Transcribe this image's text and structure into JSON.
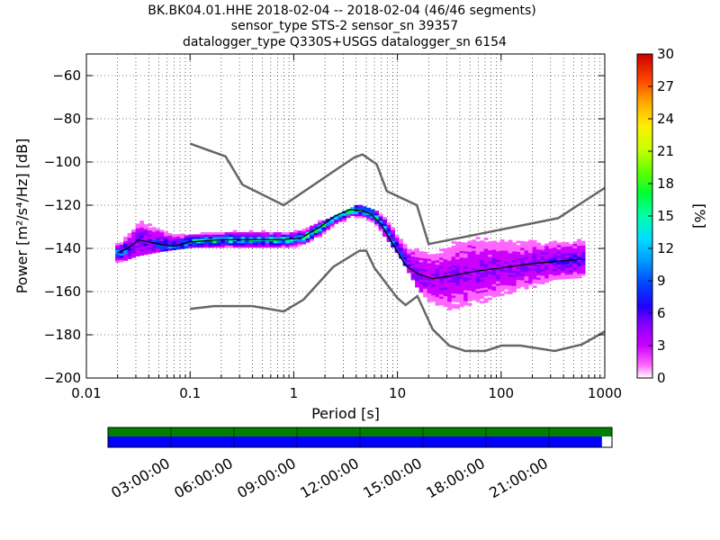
{
  "header": {
    "line1": "BK.BK04.01.HHE   2018-02-04 -- 2018-02-04  (46/46 segments)",
    "line2": "sensor_type STS-2 sensor_sn 39357",
    "line3": "datalogger_type Q330S+USGS datalogger_sn 6154"
  },
  "chart_data": [
    {
      "type": "heatmap",
      "title": "BK.BK04.01.HHE   2018-02-04 -- 2018-02-04  (46/46 segments)",
      "xlabel": "Period [s]",
      "ylabel": "Power [m²/s⁴/Hz] [dB]",
      "x_scale": "log",
      "xlim": [
        0.01,
        1000
      ],
      "ylim": [
        -200,
        -50
      ],
      "x_ticks": [
        0.01,
        0.1,
        1,
        10,
        100,
        1000
      ],
      "x_tick_labels": [
        "0.01",
        "0.1",
        "1",
        "10",
        "100",
        "1000"
      ],
      "y_ticks": [
        -200,
        -180,
        -160,
        -140,
        -120,
        -100,
        -80,
        -60
      ],
      "y_tick_labels": [
        "−200",
        "−180",
        "−160",
        "−140",
        "−120",
        "−100",
        "−80",
        "−60"
      ],
      "grid": true,
      "colorbar": {
        "label": "[%]",
        "range": [
          0,
          30
        ],
        "ticks": [
          0,
          3,
          6,
          9,
          12,
          15,
          18,
          21,
          24,
          27,
          30
        ],
        "tick_labels": [
          "0",
          "3",
          "6",
          "9",
          "12",
          "15",
          "18",
          "21",
          "24",
          "27",
          "30"
        ]
      },
      "noise_model_high": {
        "x": [
          0.1,
          0.22,
          0.32,
          0.8,
          3.8,
          4.6,
          6.3,
          7.9,
          15.4,
          20,
          354.8,
          1000
        ],
        "y": [
          -91.5,
          -97.4,
          -110.5,
          -120,
          -98,
          -96.5,
          -101,
          -113.5,
          -120,
          -138,
          -126,
          -112
        ]
      },
      "noise_model_low": {
        "x": [
          0.1,
          0.17,
          0.4,
          0.8,
          1.24,
          2.4,
          4.3,
          5,
          6,
          10,
          12,
          15.6,
          21.9,
          31.6,
          45,
          70,
          101,
          154,
          328,
          600,
          1000
        ],
        "y": [
          -168,
          -166.7,
          -166.7,
          -169.2,
          -163.7,
          -148.6,
          -141.1,
          -141.1,
          -149,
          -163,
          -166.2,
          -162.1,
          -177.5,
          -185,
          -187.5,
          -187.5,
          -185,
          -185,
          -187.5,
          -184.5,
          -178.5
        ]
      },
      "mode_curve": {
        "x": [
          0.02,
          0.025,
          0.032,
          0.04,
          0.05,
          0.07,
          0.1,
          0.2,
          0.4,
          0.8,
          1.2,
          1.8,
          2.5,
          3.5,
          4.5,
          5.5,
          7,
          9,
          12,
          16,
          22,
          30,
          50,
          100,
          200,
          600
        ],
        "y": [
          -142,
          -140,
          -136,
          -137,
          -138,
          -139,
          -137,
          -136,
          -136,
          -136,
          -135,
          -130,
          -125,
          -122,
          -122.5,
          -124,
          -129,
          -138,
          -148,
          -152,
          -154,
          -153,
          -151,
          -149,
          -147,
          -145
        ]
      },
      "histogram_envelope": {
        "x": [
          0.02,
          0.03,
          0.05,
          0.1,
          0.3,
          1,
          2,
          4,
          6,
          10,
          15,
          20,
          30,
          50,
          100,
          300,
          600
        ],
        "y_min": [
          -146,
          -143,
          -141,
          -139,
          -139,
          -139,
          -133,
          -126,
          -129,
          -143,
          -158,
          -165,
          -173,
          -174,
          -164,
          -154,
          -153
        ],
        "y_max": [
          -138,
          -122,
          -127,
          -132,
          -131,
          -132,
          -126,
          -120,
          -122,
          -129,
          -133,
          -139,
          -137,
          -135,
          -134,
          -133,
          -133
        ]
      },
      "coverage": {
        "x_tick_labels": [
          "03:00:00",
          "06:00:00",
          "09:00:00",
          "12:00:00",
          "15:00:00",
          "18:00:00",
          "21:00:00"
        ],
        "data_fraction": 0.98,
        "colors": {
          "available": "#008000",
          "used": "#0000ff"
        }
      }
    }
  ]
}
